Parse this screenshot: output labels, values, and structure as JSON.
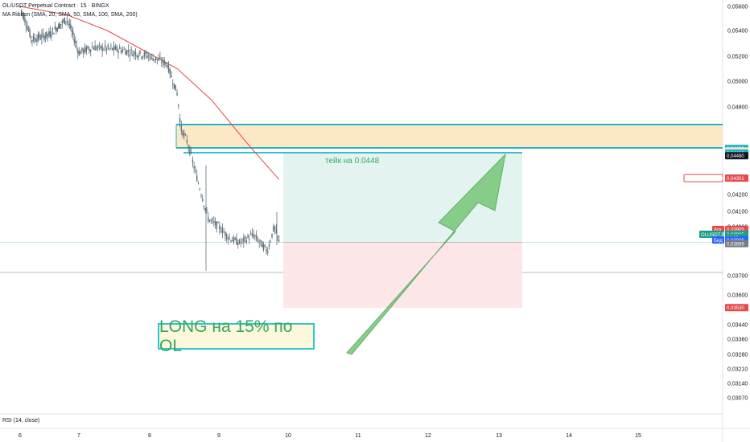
{
  "header": {
    "title": "OL/USDT Perpetual Contract · 15 · BINGX",
    "indicator": "MA Ribbon (SMA, 20, SMA, 50, SMA, 100, SMA, 200)"
  },
  "rsi_label": "RSI (14, close)",
  "annotations": {
    "take_profit": "тейк на 0.0448",
    "long_box": "LONG на 15% по OL"
  },
  "colors": {
    "candle": "#5b6f7a",
    "ma": "#e34a4a",
    "zone_fill": "#fde8c5",
    "zone_border": "#22b4c8",
    "profit_fill": "#e3f4f0",
    "loss_fill": "#fde6e8",
    "arrow": "#7cc97f"
  },
  "price_labels": [
    "0,05600",
    "0,05400",
    "0,05200",
    "0,05000",
    "0,04800",
    "0,04200",
    "0,04100",
    "0,04000",
    "0,03700",
    "0,03600",
    "0,03440",
    "0,03360",
    "0,03280",
    "0,03210",
    "0,03140",
    "0,03070"
  ],
  "tags": [
    {
      "text": "0,04480",
      "color": "#20b2c4",
      "price": 0.0451
    },
    {
      "text": "0,04482",
      "color": "#f3e4c8",
      "dark": true,
      "price": 0.04492
    },
    {
      "text": "0,04480",
      "color": "#20b2c4",
      "price": 0.04477
    },
    {
      "text": "0,04480",
      "color": "#131722",
      "price": 0.0446
    },
    {
      "text": "MA Ribbon:MA #4",
      "color": "#ffffff",
      "dark": false,
      "red": true,
      "price": 0.0431,
      "wide": true
    },
    {
      "text": "0,04301",
      "color": "#e34a4a",
      "price": 0.0431
    },
    {
      "text": "Аск",
      "color": "#e34a4a",
      "price": 0.03983,
      "small": true
    },
    {
      "text": "0,03905",
      "color": "#e34a4a",
      "price": 0.03983
    },
    {
      "text": "OLUSDT.P",
      "color": "#1a9e8a",
      "price": 0.03953,
      "wide2": true
    },
    {
      "text": "0,03905",
      "color": "#1a9e8a",
      "price": 0.03953
    },
    {
      "text": "08:35",
      "color": "#1a9e8a",
      "price": 0.03933
    },
    {
      "text": "Бид",
      "color": "#2962ff",
      "price": 0.03918,
      "small": true
    },
    {
      "text": "0,03905",
      "color": "#2962ff",
      "price": 0.03918
    },
    {
      "text": "0,03889",
      "color": "#787b86",
      "price": 0.03896
    },
    {
      "text": "0,03530",
      "color": "#e34a4a",
      "price": 0.03531
    }
  ],
  "chart_data": {
    "type": "candlestick",
    "x_labels": [
      "6",
      "7",
      "8",
      "9",
      "10",
      "11",
      "12",
      "13",
      "14",
      "15"
    ],
    "y_range": [
      0.03,
      0.0565
    ],
    "current_price": 0.03905,
    "long_position": {
      "entry": 0.03905,
      "take_profit": 0.0448,
      "stop_loss": 0.0353
    },
    "resistance_zone": {
      "top": 0.04545,
      "bottom": 0.0448
    },
    "ma200_points": [
      [
        6.0,
        0.056
      ],
      [
        6.8,
        0.0553
      ],
      [
        7.4,
        0.054
      ],
      [
        7.9,
        0.0525
      ],
      [
        8.4,
        0.051
      ],
      [
        8.9,
        0.0485
      ],
      [
        9.4,
        0.0455
      ],
      [
        9.87,
        0.043
      ]
    ],
    "price_path": [
      [
        6.0,
        0.056
      ],
      [
        6.2,
        0.0533
      ],
      [
        6.5,
        0.0537
      ],
      [
        6.8,
        0.055
      ],
      [
        7.0,
        0.0523
      ],
      [
        7.2,
        0.0527
      ],
      [
        7.6,
        0.0525
      ],
      [
        8.0,
        0.052
      ],
      [
        8.25,
        0.0514
      ],
      [
        8.4,
        0.049
      ],
      [
        8.45,
        0.0465
      ],
      [
        8.55,
        0.0455
      ],
      [
        8.7,
        0.0428
      ],
      [
        8.85,
        0.0405
      ],
      [
        9.0,
        0.04
      ],
      [
        9.15,
        0.0393
      ],
      [
        9.3,
        0.039
      ],
      [
        9.5,
        0.0395
      ],
      [
        9.7,
        0.0385
      ],
      [
        9.8,
        0.04
      ],
      [
        9.87,
        0.03905
      ]
    ]
  }
}
